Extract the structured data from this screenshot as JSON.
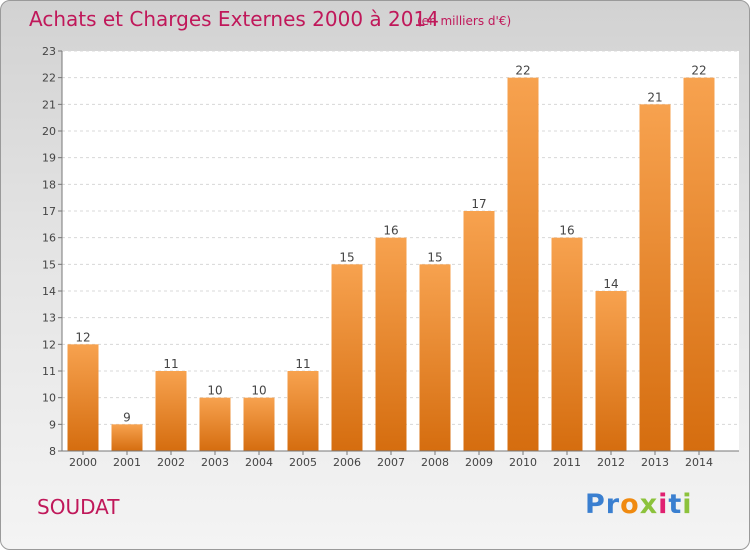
{
  "title": "Achats et Charges Externes 2000 à 2014",
  "subtitle": "(en milliers d'€)",
  "commune": "SOUDAT",
  "logo": {
    "letters": [
      "P",
      "r",
      "o",
      "x",
      "i",
      "t",
      "i"
    ],
    "colors": [
      "#3a7fd0",
      "#3a7fd0",
      "#f08a10",
      "#8cc23c",
      "#e02070",
      "#3a7fd0",
      "#8cc23c"
    ]
  },
  "colors": {
    "bar_top": "#f7a24f",
    "bar_bottom": "#d56d0f",
    "text": "#c0185a"
  },
  "chart_data": {
    "type": "bar",
    "categories": [
      "2000",
      "2001",
      "2002",
      "2003",
      "2004",
      "2005",
      "2006",
      "2007",
      "2008",
      "2009",
      "2010",
      "2011",
      "2012",
      "2013",
      "2014"
    ],
    "values": [
      12,
      9,
      11,
      10,
      10,
      11,
      15,
      16,
      15,
      17,
      22,
      16,
      14,
      21,
      22
    ],
    "ylim": [
      8,
      23
    ],
    "yticks": [
      8,
      9,
      10,
      11,
      12,
      13,
      14,
      15,
      16,
      17,
      18,
      19,
      20,
      21,
      22,
      23
    ],
    "grid": true,
    "data_labels": true
  }
}
